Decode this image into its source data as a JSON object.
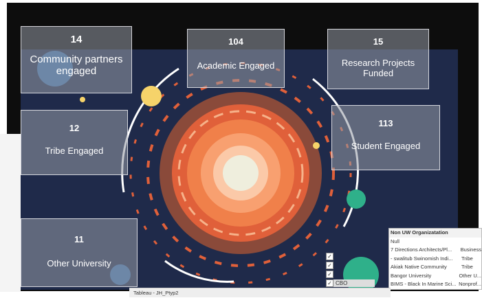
{
  "cards": [
    {
      "value": 14,
      "label": "Community partners engaged"
    },
    {
      "value": 104,
      "label": "Academic Engaged"
    },
    {
      "value": 15,
      "label": "Research Projects Funded"
    },
    {
      "value": 12,
      "label": "Tribe Engaged"
    },
    {
      "value": 113,
      "label": "Student Engaged"
    },
    {
      "value": 11,
      "label": "Other University"
    }
  ],
  "dropdown": {
    "header": "Non UW Organizatation",
    "rows": [
      [
        "Null"
      ],
      [
        "7 Directions Architects/Pl...",
        "Business"
      ],
      [
        "- swalitub Swinomish Indi...",
        "Tribe"
      ],
      [
        "Akiak Native Community",
        "Tribe"
      ],
      [
        "Bangor University",
        "Other U..."
      ],
      [
        "BIMS - Black In Marine Sci...",
        "Nonprof..."
      ]
    ]
  },
  "checkbox_label": "CBO",
  "taskbar": {
    "title": "Tableau - JH_Ptyp2"
  }
}
